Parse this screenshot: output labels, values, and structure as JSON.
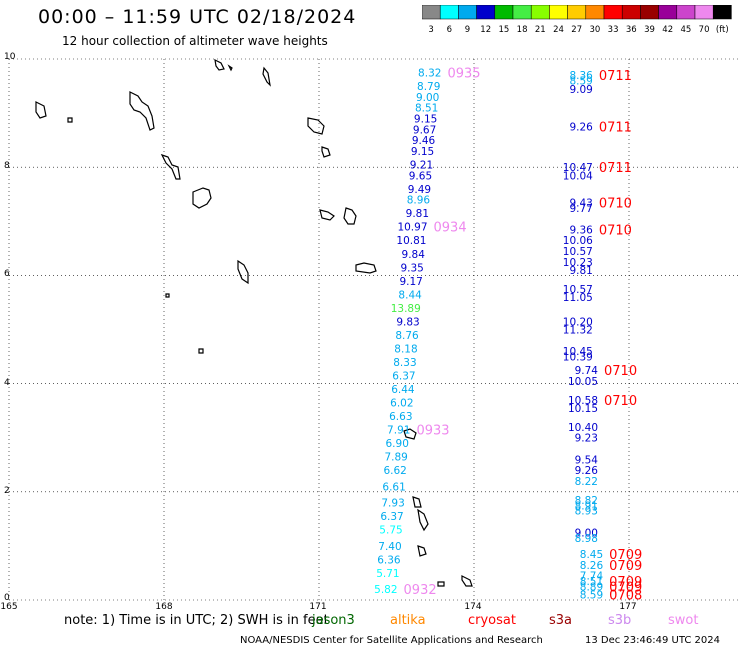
{
  "header": {
    "title": "00:00 – 11:59 UTC 02/18/2024",
    "subtitle": "12 hour collection of altimeter wave heights"
  },
  "color_scale": {
    "labels": [
      "3",
      "6",
      "9",
      "12",
      "15",
      "18",
      "21",
      "24",
      "27",
      "30",
      "33",
      "36",
      "39",
      "42",
      "45",
      "70",
      "(ft)"
    ],
    "colors": [
      "#888888",
      "#00ffff",
      "#00aaee",
      "#0000cc",
      "#00bb00",
      "#44ee44",
      "#88ff00",
      "#ffff00",
      "#ffcc00",
      "#ff8800",
      "#ff0000",
      "#cc0000",
      "#990000",
      "#990099",
      "#cc44cc",
      "#ee88ee",
      "#000000"
    ]
  },
  "axes": {
    "x_ticks": [
      "165",
      "168",
      "171",
      "174",
      "177"
    ],
    "y_ticks": [
      "10",
      "8",
      "6",
      "4",
      "2",
      "0"
    ]
  },
  "chart_data": {
    "type": "scatter",
    "xlim": [
      165,
      177
    ],
    "ylim": [
      0,
      10
    ],
    "tracks": [
      {
        "time": "0935",
        "time_color": "#ee88ee",
        "points": [
          {
            "x": 173.37,
            "y": 9.75,
            "v": "8.32",
            "c": "#00aaee"
          },
          {
            "x": 173.35,
            "y": 9.5,
            "v": "8.79",
            "c": "#00aaee"
          },
          {
            "x": 173.33,
            "y": 9.3,
            "v": "9.00",
            "c": "#00aaee"
          },
          {
            "x": 173.31,
            "y": 9.1,
            "v": "8.51",
            "c": "#00aaee"
          },
          {
            "x": 173.29,
            "y": 8.9,
            "v": "9.15",
            "c": "#0000cc"
          },
          {
            "x": 173.27,
            "y": 8.7,
            "v": "9.67",
            "c": "#0000cc"
          },
          {
            "x": 173.25,
            "y": 8.5,
            "v": "9.46",
            "c": "#0000cc"
          },
          {
            "x": 173.23,
            "y": 8.3,
            "v": "9.15",
            "c": "#0000cc"
          },
          {
            "x": 173.21,
            "y": 8.05,
            "v": "9.21",
            "c": "#0000cc"
          },
          {
            "x": 173.19,
            "y": 7.85,
            "v": "9.65",
            "c": "#0000cc"
          },
          {
            "x": 173.17,
            "y": 7.6,
            "v": "9.49",
            "c": "#0000cc"
          },
          {
            "x": 173.15,
            "y": 7.4,
            "v": "8.96",
            "c": "#00aaee"
          },
          {
            "x": 173.13,
            "y": 7.15,
            "v": "9.81",
            "c": "#0000cc"
          }
        ]
      },
      {
        "time": "0934",
        "time_color": "#ee88ee",
        "points": [
          {
            "x": 173.1,
            "y": 6.9,
            "v": "10.97",
            "c": "#0000cc"
          },
          {
            "x": 173.08,
            "y": 6.65,
            "v": "10.81",
            "c": "#0000cc"
          },
          {
            "x": 173.05,
            "y": 6.4,
            "v": "9.84",
            "c": "#0000cc"
          },
          {
            "x": 173.03,
            "y": 6.15,
            "v": "9.35",
            "c": "#0000cc"
          },
          {
            "x": 173.01,
            "y": 5.9,
            "v": "9.17",
            "c": "#0000cc"
          },
          {
            "x": 172.99,
            "y": 5.65,
            "v": "8.44",
            "c": "#00aaee"
          },
          {
            "x": 172.97,
            "y": 5.4,
            "v": "13.89",
            "c": "#44ee44"
          },
          {
            "x": 172.95,
            "y": 5.15,
            "v": "9.83",
            "c": "#0000cc"
          },
          {
            "x": 172.93,
            "y": 4.9,
            "v": "8.76",
            "c": "#00aaee"
          },
          {
            "x": 172.91,
            "y": 4.65,
            "v": "8.18",
            "c": "#00aaee"
          },
          {
            "x": 172.89,
            "y": 4.4,
            "v": "8.33",
            "c": "#00aaee"
          },
          {
            "x": 172.87,
            "y": 4.15,
            "v": "6.37",
            "c": "#00aaee"
          },
          {
            "x": 172.85,
            "y": 3.9,
            "v": "6.44",
            "c": "#00aaee"
          },
          {
            "x": 172.83,
            "y": 3.65,
            "v": "6.02",
            "c": "#00aaee"
          },
          {
            "x": 172.81,
            "y": 3.4,
            "v": "6.63",
            "c": "#00aaee"
          }
        ]
      },
      {
        "time": "0933",
        "time_color": "#ee88ee",
        "points": [
          {
            "x": 172.77,
            "y": 3.15,
            "v": "7.91",
            "c": "#00aaee"
          },
          {
            "x": 172.74,
            "y": 2.9,
            "v": "6.90",
            "c": "#00aaee"
          },
          {
            "x": 172.72,
            "y": 2.65,
            "v": "7.89",
            "c": "#00aaee"
          },
          {
            "x": 172.7,
            "y": 2.4,
            "v": "6.62",
            "c": "#00aaee"
          },
          {
            "x": 172.68,
            "y": 2.1,
            "v": "6.61",
            "c": "#00aaee"
          },
          {
            "x": 172.66,
            "y": 1.8,
            "v": "7.93",
            "c": "#00aaee"
          },
          {
            "x": 172.64,
            "y": 1.55,
            "v": "6.37",
            "c": "#00aaee"
          },
          {
            "x": 172.62,
            "y": 1.3,
            "v": "5.75",
            "c": "#00ffff"
          },
          {
            "x": 172.6,
            "y": 1.0,
            "v": "7.40",
            "c": "#00aaee"
          },
          {
            "x": 172.58,
            "y": 0.75,
            "v": "6.36",
            "c": "#00aaee"
          },
          {
            "x": 172.56,
            "y": 0.5,
            "v": "5.71",
            "c": "#00ffff"
          }
        ]
      },
      {
        "time": "0932",
        "time_color": "#ee88ee",
        "points": [
          {
            "x": 172.52,
            "y": 0.2,
            "v": "5.82",
            "c": "#00ffff"
          }
        ]
      },
      {
        "time": "0711",
        "time_color": "#ff0000",
        "points": [
          {
            "x": 176.3,
            "y": 9.7,
            "v": "8.36",
            "c": "#00aaee"
          },
          {
            "x": 176.3,
            "y": 9.6,
            "v": "8.59",
            "c": "#00aaee"
          },
          {
            "x": 176.3,
            "y": 9.45,
            "v": "9.09",
            "c": "#0000cc"
          }
        ]
      },
      {
        "time": "0711",
        "time_color": "#ff0000",
        "points": [
          {
            "x": 176.3,
            "y": 8.75,
            "v": "9.26",
            "c": "#0000cc"
          }
        ]
      },
      {
        "time": "0711",
        "time_color": "#ff0000",
        "points": [
          {
            "x": 176.3,
            "y": 8.0,
            "v": "10.47",
            "c": "#0000cc"
          },
          {
            "x": 176.3,
            "y": 7.85,
            "v": "10.04",
            "c": "#0000cc"
          }
        ]
      },
      {
        "time": "0710",
        "time_color": "#ff0000",
        "points": [
          {
            "x": 176.3,
            "y": 7.35,
            "v": "9.43",
            "c": "#0000cc"
          },
          {
            "x": 176.3,
            "y": 7.25,
            "v": "9.77",
            "c": "#0000cc"
          }
        ]
      },
      {
        "time": "0710",
        "time_color": "#ff0000",
        "points": [
          {
            "x": 176.3,
            "y": 6.85,
            "v": "9.36",
            "c": "#0000cc"
          },
          {
            "x": 176.3,
            "y": 6.65,
            "v": "10.06",
            "c": "#0000cc"
          },
          {
            "x": 176.3,
            "y": 6.45,
            "v": "10.57",
            "c": "#0000cc"
          },
          {
            "x": 176.3,
            "y": 6.25,
            "v": "10.23",
            "c": "#0000cc"
          },
          {
            "x": 176.3,
            "y": 6.1,
            "v": "9.81",
            "c": "#0000cc"
          },
          {
            "x": 176.3,
            "y": 5.75,
            "v": "10.57",
            "c": "#0000cc"
          },
          {
            "x": 176.3,
            "y": 5.6,
            "v": "11.05",
            "c": "#0000cc"
          },
          {
            "x": 176.3,
            "y": 5.15,
            "v": "10.20",
            "c": "#0000cc"
          },
          {
            "x": 176.3,
            "y": 5.0,
            "v": "11.32",
            "c": "#0000cc"
          },
          {
            "x": 176.3,
            "y": 4.6,
            "v": "10.45",
            "c": "#0000cc"
          },
          {
            "x": 176.3,
            "y": 4.5,
            "v": "10.39",
            "c": "#0000cc"
          }
        ]
      },
      {
        "time": "0710",
        "time_color": "#ff0000",
        "points": [
          {
            "x": 176.4,
            "y": 4.25,
            "v": "9.74",
            "c": "#0000cc"
          },
          {
            "x": 176.4,
            "y": 4.05,
            "v": "10.05",
            "c": "#0000cc"
          }
        ]
      },
      {
        "time": "0710",
        "time_color": "#ff0000",
        "points": [
          {
            "x": 176.4,
            "y": 3.7,
            "v": "10.58",
            "c": "#0000cc"
          },
          {
            "x": 176.4,
            "y": 3.55,
            "v": "10.15",
            "c": "#0000cc"
          },
          {
            "x": 176.4,
            "y": 3.2,
            "v": "10.40",
            "c": "#0000cc"
          },
          {
            "x": 176.4,
            "y": 3.0,
            "v": "9.23",
            "c": "#0000cc"
          },
          {
            "x": 176.4,
            "y": 2.6,
            "v": "9.54",
            "c": "#0000cc"
          },
          {
            "x": 176.4,
            "y": 2.4,
            "v": "9.26",
            "c": "#0000cc"
          },
          {
            "x": 176.4,
            "y": 2.2,
            "v": "8.22",
            "c": "#00aaee"
          },
          {
            "x": 176.4,
            "y": 1.85,
            "v": "8.82",
            "c": "#00aaee"
          },
          {
            "x": 176.4,
            "y": 1.75,
            "v": "8.91",
            "c": "#00aaee"
          },
          {
            "x": 176.4,
            "y": 1.65,
            "v": "8.93",
            "c": "#00aaee"
          },
          {
            "x": 176.4,
            "y": 1.25,
            "v": "9.00",
            "c": "#0000cc"
          },
          {
            "x": 176.4,
            "y": 1.15,
            "v": "8.98",
            "c": "#00aaee"
          }
        ]
      },
      {
        "time": "0709",
        "time_color": "#ff0000",
        "points": [
          {
            "x": 176.5,
            "y": 0.85,
            "v": "8.45",
            "c": "#00aaee"
          }
        ]
      },
      {
        "time": "0709",
        "time_color": "#ff0000",
        "points": [
          {
            "x": 176.5,
            "y": 0.65,
            "v": "8.26",
            "c": "#00aaee"
          },
          {
            "x": 176.5,
            "y": 0.45,
            "v": "7.74",
            "c": "#00aaee"
          }
        ]
      },
      {
        "time": "0709",
        "time_color": "#ff0000",
        "points": [
          {
            "x": 176.5,
            "y": 0.35,
            "v": "8.51",
            "c": "#00aaee"
          }
        ]
      },
      {
        "time": "0709",
        "time_color": "#ff0000",
        "points": [
          {
            "x": 176.5,
            "y": 0.25,
            "v": "8.89",
            "c": "#00aaee"
          }
        ]
      },
      {
        "time": "0708",
        "time_color": "#ff0000",
        "points": [
          {
            "x": 176.5,
            "y": 0.1,
            "v": "8.59",
            "c": "#00aaee"
          }
        ]
      }
    ]
  },
  "footer": {
    "note": "note:  1) Time is in UTC; 2) SWH is in feet",
    "missions": [
      {
        "label": "jason3",
        "color": "#006600"
      },
      {
        "label": "altika",
        "color": "#ff8800"
      },
      {
        "label": "cryosat",
        "color": "#ff0000"
      },
      {
        "label": "s3a",
        "color": "#990000"
      },
      {
        "label": "s3b",
        "color": "#cc88ee"
      },
      {
        "label": "swot",
        "color": "#ee88ee"
      }
    ],
    "credit": "NOAA/NESDIS Center for Satellite Applications and Research",
    "timestamp": "13 Dec 23:46:49 UTC 2024"
  }
}
